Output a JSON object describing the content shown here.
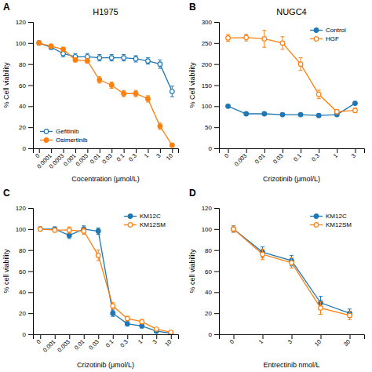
{
  "chart_data": [
    {
      "type": "line",
      "title": "H1975",
      "annotations": [
        "A"
      ],
      "x_label": "Cocentration (μmol/L)",
      "y_label": "% Cell viability",
      "categories": [
        "0",
        "0.0001",
        "0.0003",
        "0.001",
        "0.003",
        "0.01",
        "0.03",
        "0.1",
        "0.3",
        "1",
        "3",
        "10"
      ],
      "series": [
        {
          "name": "Gefitinib",
          "marker": "open-circle",
          "values": [
            100,
            96,
            90,
            87,
            87,
            86,
            86,
            86,
            85,
            83,
            80,
            54
          ],
          "yerr": [
            2,
            2,
            3,
            3,
            3,
            3,
            3,
            3,
            3,
            3,
            4,
            5
          ]
        },
        {
          "name": "Osimertinib",
          "marker": "filled-circle",
          "values": [
            100,
            97,
            94,
            84,
            83,
            65,
            60,
            52,
            52,
            47,
            21,
            3
          ],
          "yerr": [
            2,
            2,
            2,
            2,
            2,
            3,
            3,
            3,
            3,
            3,
            3,
            1
          ]
        }
      ],
      "ylim": [
        0,
        120
      ],
      "yticks": [
        0,
        20,
        40,
        60,
        80,
        100,
        120
      ],
      "grid": false,
      "legend": "lower left"
    },
    {
      "type": "line",
      "title": "NUGC4",
      "annotations": [
        "B"
      ],
      "x_label": "Crizotinib (μmol/L)",
      "y_label": "% Cell viability",
      "categories": [
        "0",
        "0.003",
        "0.01",
        "0.03",
        "0.1",
        "0.3",
        "1",
        "3"
      ],
      "series": [
        {
          "name": "Control",
          "marker": "filled-circle",
          "values": [
            100,
            82,
            82,
            80,
            80,
            78,
            80,
            107
          ],
          "yerr": [
            2,
            2,
            2,
            2,
            2,
            2,
            2,
            3
          ]
        },
        {
          "name": "HGF",
          "marker": "open-circle",
          "values": [
            262,
            263,
            260,
            250,
            200,
            128,
            87,
            90
          ],
          "yerr": [
            8,
            8,
            20,
            15,
            15,
            10,
            5,
            5
          ]
        }
      ],
      "ylim": [
        0,
        300
      ],
      "yticks": [
        0,
        50,
        100,
        150,
        200,
        250,
        300
      ],
      "grid": false,
      "legend": "upper right"
    },
    {
      "type": "line",
      "annotations": [
        "C"
      ],
      "x_label": "Crizotinib (μmol/L)",
      "y_label": "% cell viability",
      "categories": [
        "0",
        "0.001",
        "0.003",
        "0.01",
        "0.03",
        "0.1",
        "0.3",
        "1",
        "3",
        "10"
      ],
      "series": [
        {
          "name": "KM12C",
          "marker": "filled-circle",
          "values": [
            100,
            100,
            94,
            100,
            98,
            20,
            10,
            8,
            3,
            1
          ],
          "yerr": [
            2,
            2,
            3,
            3,
            3,
            3,
            2,
            2,
            1,
            1
          ]
        },
        {
          "name": "KM12SM",
          "marker": "open-circle",
          "values": [
            100,
            99,
            99,
            98,
            75,
            27,
            15,
            12,
            5,
            2
          ],
          "yerr": [
            2,
            2,
            3,
            3,
            5,
            3,
            2,
            2,
            1,
            1
          ]
        }
      ],
      "ylim": [
        0,
        120
      ],
      "yticks": [
        0,
        20,
        40,
        60,
        80,
        100,
        120
      ],
      "grid": false,
      "legend": "upper right"
    },
    {
      "type": "line",
      "annotations": [
        "D"
      ],
      "x_label": "Entrectinib nmol/L",
      "y_label": "% cell viability",
      "categories": [
        "0",
        "1",
        "3",
        "10",
        "30"
      ],
      "series": [
        {
          "name": "KM12C",
          "marker": "filled-circle",
          "values": [
            100,
            78,
            70,
            30,
            20
          ],
          "yerr": [
            3,
            5,
            5,
            6,
            4
          ]
        },
        {
          "name": "KM12SM",
          "marker": "open-circle",
          "values": [
            100,
            76,
            68,
            25,
            18
          ],
          "yerr": [
            3,
            5,
            5,
            6,
            4
          ]
        }
      ],
      "ylim": [
        0,
        120
      ],
      "yticks": [
        0,
        20,
        40,
        60,
        80,
        100,
        120
      ],
      "grid": false,
      "legend": "upper right"
    }
  ]
}
